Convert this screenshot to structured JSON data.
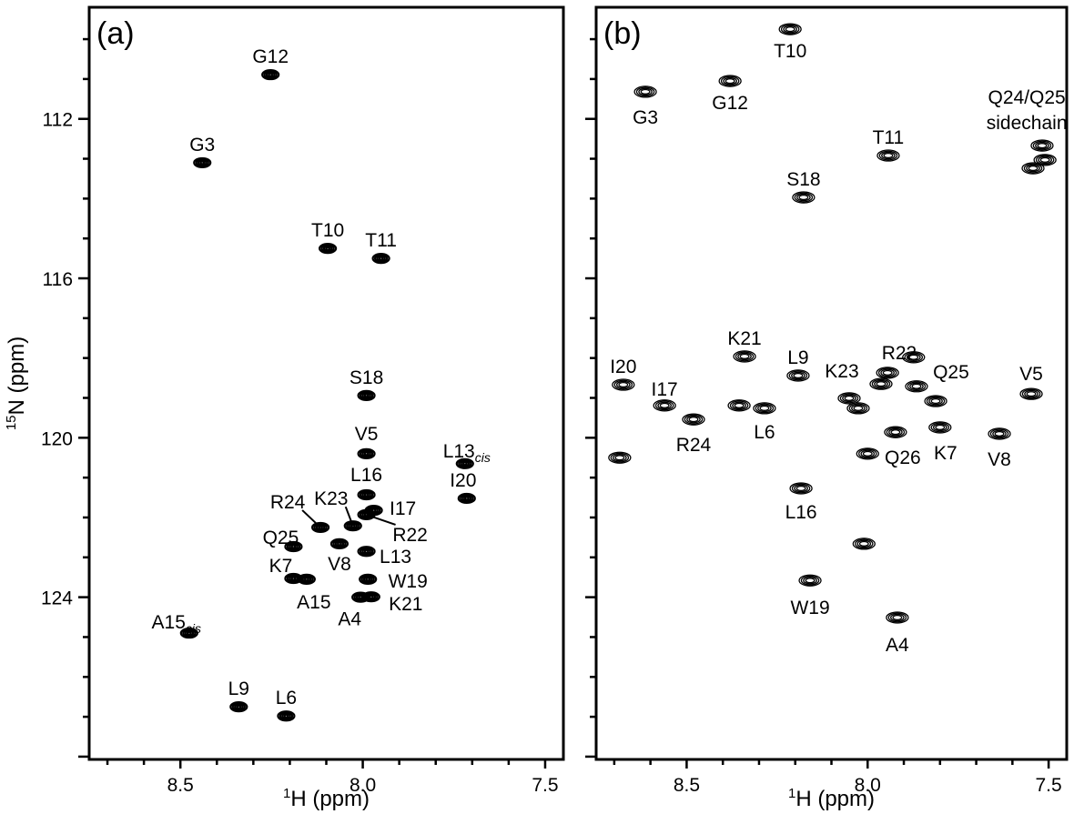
{
  "chart_data": [
    {
      "type": "scatter",
      "panel_label": "(a)",
      "xlabel": "1H (ppm)",
      "ylabel": "15N (ppm)",
      "xlim": [
        8.75,
        7.45
      ],
      "ylim": [
        109.2,
        128.07
      ],
      "x_reversed": true,
      "y_reversed": true,
      "xticks": [
        "8.5",
        "8.0",
        "7.5"
      ],
      "yticks": [
        "112",
        "116",
        "120",
        "124"
      ],
      "grid": false,
      "peaks": [
        {
          "label": "G12",
          "x": 8.253,
          "y": 110.89
        },
        {
          "label": "G3",
          "x": 8.44,
          "y": 113.1
        },
        {
          "label": "T10",
          "x": 8.096,
          "y": 115.25
        },
        {
          "label": "T11",
          "x": 7.95,
          "y": 115.5
        },
        {
          "label": "S18",
          "x": 7.99,
          "y": 118.94
        },
        {
          "label": "V5",
          "x": 7.99,
          "y": 120.4
        },
        {
          "label": "L13",
          "sub": "cis",
          "x": 7.72,
          "y": 120.65
        },
        {
          "label": "I20",
          "x": 7.715,
          "y": 121.52
        },
        {
          "label": "L16",
          "x": 7.99,
          "y": 121.43
        },
        {
          "label": "I17",
          "x": 7.97,
          "y": 121.82
        },
        {
          "label": "R22",
          "x": 7.99,
          "y": 121.93
        },
        {
          "label": "R24",
          "x": 8.116,
          "y": 122.25
        },
        {
          "label": "K23",
          "x": 8.027,
          "y": 122.21
        },
        {
          "label": "Q25",
          "x": 8.19,
          "y": 122.73
        },
        {
          "label": "V8",
          "x": 8.064,
          "y": 122.66
        },
        {
          "label": "L13",
          "x": 7.99,
          "y": 122.85
        },
        {
          "label": "K7",
          "x": 8.19,
          "y": 123.53
        },
        {
          "label": "A15",
          "x": 8.154,
          "y": 123.55
        },
        {
          "label": "W19",
          "x": 7.986,
          "y": 123.55
        },
        {
          "label": "A4",
          "x": 8.006,
          "y": 124.0
        },
        {
          "label": "K21",
          "x": 7.977,
          "y": 123.99
        },
        {
          "label": "A15",
          "sub": "cis",
          "x": 8.476,
          "y": 124.9
        },
        {
          "label": "L9",
          "x": 8.34,
          "y": 126.75
        },
        {
          "label": "L6",
          "x": 8.21,
          "y": 126.98
        }
      ]
    },
    {
      "type": "scatter",
      "panel_label": "(b)",
      "xlabel": "1H (ppm)",
      "xlim": [
        8.75,
        7.45
      ],
      "ylim": [
        109.2,
        128.07
      ],
      "x_reversed": true,
      "y_reversed": true,
      "xticks": [
        "8.5",
        "8.0",
        "7.5"
      ],
      "grid": false,
      "peaks": [
        {
          "label": "T10",
          "x": 8.214,
          "y": 109.75
        },
        {
          "label": "G12",
          "x": 8.38,
          "y": 111.05
        },
        {
          "label": "G3",
          "x": 8.614,
          "y": 111.32
        },
        {
          "label": "T11",
          "x": 7.943,
          "y": 112.92
        },
        {
          "label": "S18",
          "x": 8.177,
          "y": 113.97
        },
        {
          "label": "Q24/Q25 sidechain",
          "x": 7.51,
          "y": 113.03
        },
        {
          "label": "",
          "x": 7.543,
          "y": 113.24
        },
        {
          "label": "",
          "x": 7.518,
          "y": 112.67
        },
        {
          "label": "K21",
          "x": 8.34,
          "y": 117.96
        },
        {
          "label": "L9",
          "x": 8.192,
          "y": 118.44
        },
        {
          "label": "R22",
          "x": 7.963,
          "y": 118.65
        },
        {
          "label": "",
          "x": 7.945,
          "y": 118.37
        },
        {
          "label": "",
          "x": 7.873,
          "y": 117.98
        },
        {
          "label": "K23",
          "x": 8.051,
          "y": 119.01
        },
        {
          "label": "",
          "x": 8.026,
          "y": 119.26
        },
        {
          "label": "Q25",
          "x": 7.865,
          "y": 118.71
        },
        {
          "label": "V5",
          "x": 7.548,
          "y": 118.9
        },
        {
          "label": "I20",
          "x": 8.675,
          "y": 118.67
        },
        {
          "label": "I17",
          "x": 8.561,
          "y": 119.19
        },
        {
          "label": "R24",
          "x": 8.481,
          "y": 119.54
        },
        {
          "label": "L6",
          "x": 8.285,
          "y": 119.26
        },
        {
          "label": "",
          "x": 8.355,
          "y": 119.19
        },
        {
          "label": "",
          "x": 7.812,
          "y": 119.08
        },
        {
          "label": "Q26",
          "x": 7.923,
          "y": 119.86
        },
        {
          "label": "K7",
          "x": 7.8,
          "y": 119.74
        },
        {
          "label": "V8",
          "x": 7.636,
          "y": 119.9
        },
        {
          "label": "",
          "x": 8.0,
          "y": 120.4
        },
        {
          "label": "",
          "x": 8.685,
          "y": 120.5
        },
        {
          "label": "L16",
          "x": 8.184,
          "y": 121.27
        },
        {
          "label": "",
          "x": 8.01,
          "y": 122.66
        },
        {
          "label": "W19",
          "x": 8.159,
          "y": 123.58
        },
        {
          "label": "A4",
          "x": 7.918,
          "y": 124.51
        }
      ]
    }
  ]
}
